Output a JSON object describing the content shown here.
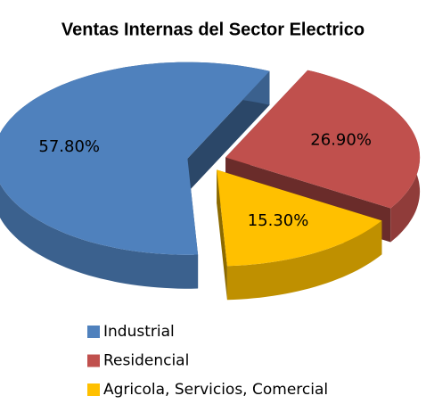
{
  "chart_data": {
    "type": "pie",
    "title": "Ventas Internas del Sector Electrico",
    "categories": [
      "Industrial",
      "Residencial",
      "Agricola, Servicios, Comercial"
    ],
    "values": [
      57.8,
      26.9,
      15.3
    ],
    "value_labels": [
      "57.80%",
      "26.90%",
      "15.30%"
    ],
    "colors": [
      "#4f81bd",
      "#c0504d",
      "#ffc000"
    ],
    "legend": "bottom"
  }
}
